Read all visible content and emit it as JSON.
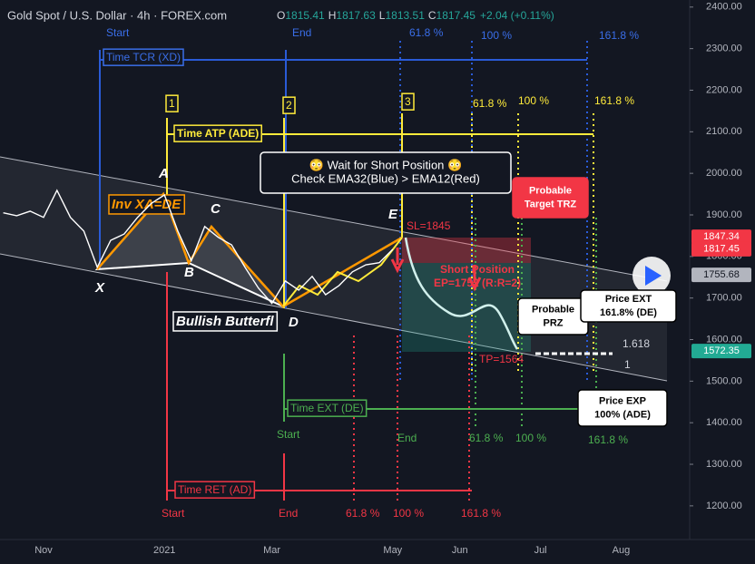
{
  "chart_data": {
    "type": "line",
    "title": "Gold Spot / U.S. Dollar · 4h · FOREX.com",
    "ohlc": [
      "O",
      "1815.41",
      "H",
      "1817.63",
      "L",
      "1813.51",
      "C",
      "1817.45",
      "+2.04 (+0.11%)"
    ],
    "categories": [
      null,
      null,
      null,
      "Nov",
      null,
      null,
      null,
      null,
      null,
      null,
      null,
      null,
      "2021",
      null,
      null,
      null,
      null,
      null,
      null,
      null,
      "Mar",
      null,
      null,
      null,
      null,
      null,
      null,
      null,
      null,
      "May",
      null,
      null,
      null,
      null,
      "Jun",
      null,
      null,
      null,
      null,
      null,
      "Jul",
      null,
      null,
      null,
      null,
      null,
      "Aug",
      null,
      null
    ],
    "values": [
      1905,
      1898,
      1909,
      1894,
      1959,
      1894,
      1861,
      1774,
      1839,
      1854,
      1894,
      1927,
      1948,
      1861,
      1790,
      1872,
      1846,
      1828,
      1774,
      1724,
      1687,
      1741,
      1719,
      1752,
      1708,
      1730,
      1763,
      1780,
      1785,
      1817,
      null,
      null,
      null,
      null,
      null,
      null,
      null,
      null,
      null,
      null,
      null,
      null,
      null,
      null,
      null,
      null,
      null,
      null,
      null
    ],
    "color": "#ffffff",
    "ylim": [
      1119,
      2417
    ],
    "yticks": [
      {
        "value": 1200,
        "label": "1200.00"
      },
      {
        "value": 1300,
        "label": "1300.00"
      },
      {
        "value": 1400,
        "label": "1400.00"
      },
      {
        "value": 1500,
        "label": "1500.00"
      },
      {
        "value": 1600,
        "label": "1600.00"
      },
      {
        "value": 1700,
        "label": "1700.00"
      },
      {
        "value": 1800,
        "label": "1800.00"
      },
      {
        "value": 1900,
        "label": "1900.00"
      },
      {
        "value": 2000,
        "label": "2000.00"
      },
      {
        "value": 2100,
        "label": "2100.00"
      },
      {
        "value": 2200,
        "label": "2200.00"
      },
      {
        "value": 2300,
        "label": "2300.00"
      },
      {
        "value": 2400,
        "label": "2400.00"
      }
    ],
    "grid": false,
    "price_tags": [
      {
        "value": 1847.34,
        "color": "#f23645"
      },
      {
        "value": 1817.45,
        "color": "#f23645"
      },
      {
        "value": 1755.68,
        "color": "#b2b5be"
      },
      {
        "value": 1572.35,
        "color": "#22ab94"
      }
    ],
    "annotations": [
      "Start",
      "End",
      "61.8 %",
      "100 %",
      "161.8 %",
      "Time TCR (XD)",
      "1",
      "2",
      "3",
      "61.8 %",
      "100 %",
      "161.8 %",
      "Time ATP (ADE)",
      "Inv XA=DE",
      "A",
      "B",
      "C",
      "D",
      "E",
      "X",
      "Bullish Butterfl",
      "SL=1845",
      "Short Position",
      "EP=1752 (R:R=2)",
      "TP=1564",
      "Time EXT (DE)",
      "Start",
      "End",
      "61.8 %",
      "100 %",
      "161.8 %",
      "Time RET (AD)",
      "Start",
      "End",
      "61.8 %",
      "100 %",
      "161.8 %",
      "1.618",
      "1"
    ],
    "callouts": [
      [
        "😳 Wait for Short Position 😳",
        "Check EMA32(Blue)  >  EMA12(Red)"
      ],
      [
        "Probable",
        "Target TRZ"
      ],
      [
        "Probable",
        "PRZ"
      ],
      [
        "Price EXT",
        "161.8% (DE)"
      ],
      [
        "Price EXP",
        "100% (ADE)"
      ]
    ]
  }
}
